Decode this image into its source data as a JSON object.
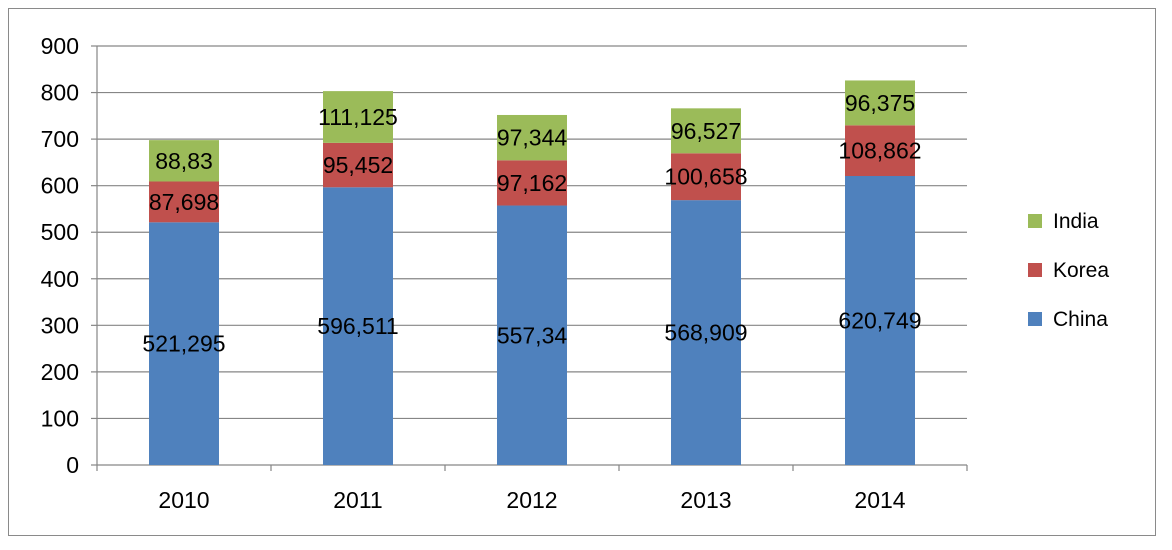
{
  "chart_data": {
    "type": "bar",
    "stacked": true,
    "title": "",
    "xlabel": "",
    "ylabel": "",
    "categories": [
      "2010",
      "2011",
      "2012",
      "2013",
      "2014"
    ],
    "ylim": [
      0,
      900
    ],
    "yticks": [
      0,
      100,
      200,
      300,
      400,
      500,
      600,
      700,
      800,
      900
    ],
    "grid": true,
    "legend_position": "right",
    "series": [
      {
        "name": "China",
        "color": "#4f81bd",
        "values": [
          521.295,
          596.511,
          557.34,
          568.909,
          620.749
        ],
        "labels": [
          "521,295",
          "596,511",
          "557,34",
          "568,909",
          "620,749"
        ]
      },
      {
        "name": "Korea",
        "color": "#c0504d",
        "values": [
          87.698,
          95.452,
          97.162,
          100.658,
          108.862
        ],
        "labels": [
          "87,698",
          "95,452",
          "97,162",
          "100,658",
          "108,862"
        ]
      },
      {
        "name": "India",
        "color": "#9bbb59",
        "values": [
          88.83,
          111.125,
          97.344,
          96.527,
          96.375
        ],
        "labels": [
          "88,83",
          "111,125",
          "97,344",
          "96,527",
          "96,375"
        ]
      }
    ]
  }
}
